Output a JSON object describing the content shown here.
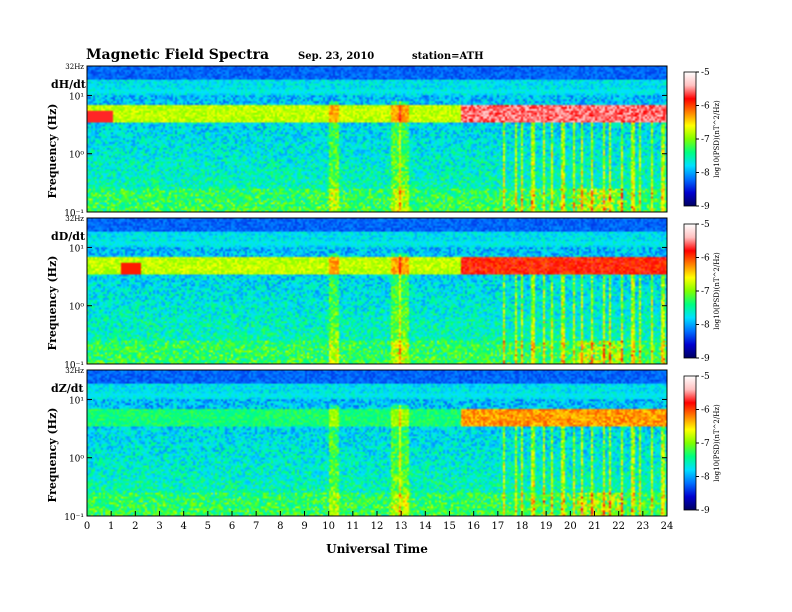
{
  "header": {
    "title": "Magnetic Field Spectra",
    "date": "Sep. 23, 2010",
    "station": "station=ATH"
  },
  "chart_data": {
    "type": "heatmap",
    "title": "Magnetic Field Spectra",
    "xlabel": "Universal Time",
    "x_ticks": [
      "0",
      "1",
      "2",
      "3",
      "4",
      "5",
      "6",
      "7",
      "8",
      "9",
      "10",
      "11",
      "12",
      "13",
      "14",
      "15",
      "16",
      "17",
      "18",
      "19",
      "20",
      "21",
      "22",
      "23",
      "24"
    ],
    "xlim": [
      0,
      24
    ],
    "y_scale": "log",
    "colorbar": {
      "label": "log10(PSD)(nT^2/Hz)",
      "ticks": [
        "-5",
        "-6",
        "-7",
        "-8",
        "-9"
      ],
      "range": [
        -9,
        -5
      ],
      "colors": [
        "#000060",
        "#0000d0",
        "#0070ff",
        "#00e0ff",
        "#00ff80",
        "#80ff00",
        "#ffff00",
        "#ff8000",
        "#ff0000",
        "#ffc0c0",
        "#ffffff"
      ]
    },
    "panels": [
      {
        "name": "dH/dt",
        "ylabel": "Frequency (Hz)",
        "y_ticks": [
          "32Hz",
          "10¹",
          "10⁰",
          "10⁻¹"
        ]
      },
      {
        "name": "dD/dt",
        "ylabel": "Frequency (Hz)",
        "y_ticks": [
          "32Hz",
          "10¹",
          "10⁰",
          "10⁻¹"
        ]
      },
      {
        "name": "dZ/dt",
        "ylabel": "Frequency (Hz)",
        "y_ticks": [
          "32Hz",
          "10¹",
          "10⁰",
          "10⁻¹"
        ]
      }
    ],
    "features": {
      "band_frequency_hz": [
        4,
        6
      ],
      "band_strong_hours": [
        15.5,
        24
      ],
      "broadband_hours": [
        17,
        24
      ],
      "transients_hours": [
        10.2,
        12.8,
        13.1
      ]
    }
  }
}
